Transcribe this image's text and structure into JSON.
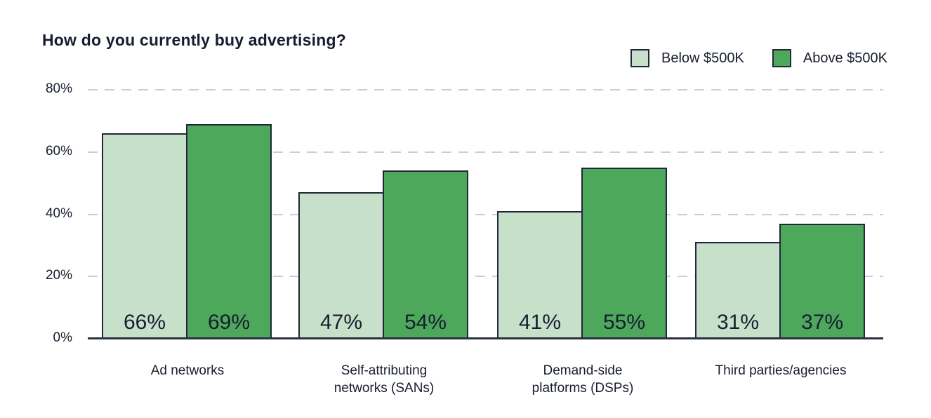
{
  "colors": {
    "background": "#ffffff",
    "text": "#171d2f",
    "bar_border": "#212738",
    "gridline": "#c9cdd7",
    "axis_line": "#2c3140",
    "series_below_500k": "#c6e0ca",
    "series_above_500k": "#4da85c"
  },
  "chart_data": {
    "type": "bar",
    "title": "How do you currently buy advertising?",
    "categories": [
      "Ad networks",
      "Self-attributing networks (SANs)",
      "Demand-side platforms (DSPs)",
      "Third parties/agencies"
    ],
    "category_display": [
      "Ad networks",
      "Self-attributing\nnetworks (SANs)",
      "Demand-side\nplatforms (DSPs)",
      "Third parties/agencies"
    ],
    "series": [
      {
        "name": "Below $500K",
        "color": "#c6e0ca",
        "values": [
          66,
          47,
          41,
          31
        ]
      },
      {
        "name": "Above $500K",
        "color": "#4da85c",
        "values": [
          69,
          54,
          55,
          37
        ]
      }
    ],
    "value_labels": [
      [
        "66%",
        "47%",
        "41%",
        "31%"
      ],
      [
        "69%",
        "54%",
        "55%",
        "37%"
      ]
    ],
    "xlabel": "",
    "ylabel": "",
    "ylim": [
      0,
      80
    ],
    "yticks": [
      80,
      60,
      40,
      20,
      0
    ],
    "ytick_labels": [
      "80%",
      "60%",
      "40%",
      "20%",
      "0%"
    ],
    "grid": "horizontal-dashed",
    "legend_position": "top-right"
  }
}
